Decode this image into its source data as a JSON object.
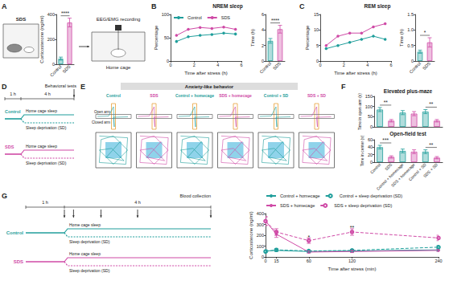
{
  "chart_data": [
    {
      "panel": "A",
      "type": "bar",
      "y_label": "Corticosterone (ng/ml)",
      "categories": [
        "Control",
        "SDS"
      ],
      "values": [
        45,
        335
      ],
      "errors": [
        12,
        35
      ],
      "colors": [
        "#1f9e9b",
        "#cf4aa6"
      ],
      "ylim": [
        0,
        400
      ],
      "yticks": [
        0,
        200,
        400
      ],
      "grid": false,
      "annotations": [
        {
          "text": "****",
          "categories": [
            "Control",
            "SDS"
          ]
        }
      ]
    },
    {
      "panel": "B",
      "type": "line",
      "title": "NREM sleep",
      "x_label": "Time after stress (h)",
      "y_label": "Percentage",
      "x": [
        0.5,
        1.5,
        2.5,
        3.5,
        4.5,
        5.5
      ],
      "series": [
        {
          "name": "Control",
          "color": "#1f9e9b",
          "values": [
            42,
            52,
            55,
            57,
            60,
            58
          ]
        },
        {
          "name": "SDS",
          "color": "#cf4aa6",
          "values": [
            55,
            68,
            72,
            70,
            73,
            68
          ]
        }
      ],
      "xlim": [
        0,
        6
      ],
      "xticks": [
        0,
        2,
        4,
        6
      ],
      "ylim": [
        0,
        100
      ],
      "yticks": [
        0,
        50,
        100
      ],
      "legend": "upper left",
      "grid": false
    },
    {
      "type": "bar",
      "y_label": "Time (h)",
      "categories": [
        "Control",
        "SDS"
      ],
      "values": [
        2.6,
        4.1
      ],
      "errors": [
        0.3,
        0.5
      ],
      "colors": [
        "#1f9e9b",
        "#cf4aa6"
      ],
      "ylim": [
        0,
        6
      ],
      "yticks": [
        0,
        2,
        4,
        6
      ],
      "grid": false,
      "annotations": [
        {
          "text": "****",
          "categories": [
            "Control",
            "SDS"
          ]
        }
      ]
    },
    {
      "panel": "C",
      "type": "line",
      "title": "REM sleep",
      "x_label": "Time after stress (h)",
      "y_label": "Percentage",
      "x": [
        0.5,
        1.5,
        2.5,
        3.5,
        4.5,
        5.5
      ],
      "series": [
        {
          "name": "Control",
          "color": "#1f9e9b",
          "values": [
            4,
            5,
            6,
            7,
            8,
            7
          ]
        },
        {
          "name": "SDS",
          "color": "#cf4aa6",
          "values": [
            5,
            8,
            9,
            9,
            11,
            12
          ]
        }
      ],
      "xlim": [
        0,
        6
      ],
      "xticks": [
        0,
        2,
        4,
        6
      ],
      "ylim": [
        0,
        15
      ],
      "yticks": [
        0,
        5,
        10,
        15
      ],
      "grid": false
    },
    {
      "type": "bar",
      "y_label": "Time (h)",
      "categories": [
        "Control",
        "SDS"
      ],
      "values": [
        0.3,
        0.6
      ],
      "errors": [
        0.05,
        0.15
      ],
      "colors": [
        "#1f9e9b",
        "#cf4aa6"
      ],
      "ylim": [
        0,
        1.5
      ],
      "yticks": [
        0,
        0.5,
        {
          "value": 1,
          "label": "1.0"
        },
        1.5
      ],
      "grid": false,
      "annotations": [
        {
          "text": "*",
          "categories": [
            "Control",
            "SDS"
          ]
        }
      ]
    },
    {
      "panel": "F",
      "type": "bar",
      "title": "Elevated plus-maze",
      "y_label": "Time in open arm (s)",
      "categories": [
        "Control",
        "SDS",
        "Control + homecage",
        "SDS + homecage",
        "Control + SD",
        "SDS + SD"
      ],
      "values": [
        85,
        30,
        70,
        65,
        75,
        30
      ],
      "errors": [
        10,
        6,
        10,
        10,
        10,
        6
      ],
      "colors": [
        "#1f9e9b",
        "#cf4aa6",
        "#1f9e9b",
        "#cf4aa6",
        "#1f9e9b",
        "#cf4aa6"
      ],
      "ylim": [
        0,
        150
      ],
      "yticks": [
        0,
        50,
        100,
        150
      ],
      "tick_labels": "y",
      "grid": false,
      "annotations": [
        {
          "text": "**",
          "categories": [
            "Control",
            "SDS"
          ]
        },
        {
          "text": "**",
          "categories": [
            "Control + SD",
            "SDS + SD"
          ]
        }
      ]
    },
    {
      "type": "bar",
      "title": "Open-field test",
      "y_label": "Time in center (s)",
      "categories": [
        "Control",
        "SDS",
        "Control + homecage",
        "SDS + homecage",
        "Control + SD",
        "SDS + SD"
      ],
      "values": [
        40,
        14,
        30,
        28,
        28,
        12
      ],
      "errors": [
        5,
        3,
        5,
        5,
        5,
        3
      ],
      "colors": [
        "#1f9e9b",
        "#cf4aa6",
        "#1f9e9b",
        "#cf4aa6",
        "#1f9e9b",
        "#cf4aa6"
      ],
      "ylim": [
        0,
        60
      ],
      "yticks": [
        0,
        20,
        40,
        60
      ],
      "grid": false,
      "annotations": [
        {
          "text": "***",
          "categories": [
            "Control",
            "SDS"
          ]
        },
        {
          "text": "**",
          "categories": [
            "Control + SD",
            "SDS + SD"
          ]
        }
      ]
    },
    {
      "panel": "G",
      "type": "line",
      "x_label": "Time after stress (min)",
      "y_label": "Corticosterone (ng/ml)",
      "x": [
        0,
        15,
        60,
        120,
        240
      ],
      "series": [
        {
          "name": "Control + homecage",
          "color": "#1f9e9b",
          "marker": "filled",
          "line_style": "solid",
          "values": [
            55,
            60,
            50,
            55,
            65
          ],
          "errors": [
            10,
            10,
            8,
            10,
            10
          ]
        },
        {
          "name": "Control + sleep deprivation (SD)",
          "color": "#1f9e9b",
          "marker": "open",
          "line_style": "dashed",
          "values": [
            50,
            65,
            55,
            60,
            90
          ],
          "errors": [
            10,
            10,
            8,
            10,
            15
          ]
        },
        {
          "name": "SDS + homecage",
          "color": "#cf4aa6",
          "marker": "filled",
          "line_style": "solid",
          "values": [
            330,
            210,
            45,
            50,
            60
          ],
          "errors": [
            40,
            30,
            10,
            10,
            10
          ]
        },
        {
          "name": "SDS + sleep deprivation (SD)",
          "color": "#cf4aa6",
          "marker": "open",
          "line_style": "dashed",
          "values": [
            330,
            230,
            150,
            230,
            175
          ],
          "errors": [
            40,
            30,
            25,
            30,
            25
          ]
        }
      ],
      "xlim": [
        0,
        240
      ],
      "xticks": [
        0,
        15,
        60,
        120,
        240
      ],
      "ylim": [
        0,
        400
      ],
      "yticks": [
        0,
        100,
        200,
        300,
        400
      ],
      "legend": "top",
      "grid": false,
      "annotations": [
        {
          "text": "*",
          "x": 60,
          "y": 185
        },
        {
          "text": "**",
          "x": 120,
          "y": 270
        }
      ]
    }
  ],
  "schematics": {
    "A": {
      "labels": [
        "SDS",
        "EEG/EMG recording",
        "Home cage"
      ]
    },
    "D": {
      "panel": "D",
      "header": "Behavioral tests",
      "durations": [
        "1 h",
        "4 h"
      ],
      "groups": [
        {
          "name": "Control",
          "color": "#1f9e9b"
        },
        {
          "name": "SDS",
          "color": "#cf4aa6"
        }
      ],
      "conditions": [
        "Home cage sleep",
        "Sleep deprivation (SD)"
      ]
    },
    "E": {
      "panel": "E",
      "title": "Anxiety-like behavior",
      "columns": [
        {
          "name": "Control",
          "color": "#1f9e9b"
        },
        {
          "name": "SDS",
          "color": "#cf4aa6"
        },
        {
          "name": "Control + homecage",
          "color": "#1f9e9b"
        },
        {
          "name": "SDS + homecage",
          "color": "#cf4aa6"
        },
        {
          "name": "Control + SD",
          "color": "#1f9e9b"
        },
        {
          "name": "SDS + SD",
          "color": "#cf4aa6"
        }
      ],
      "arms": [
        "Open arm",
        "Closed arm"
      ]
    },
    "G": {
      "durations": [
        "1 h",
        "4 h"
      ],
      "groups": [
        {
          "name": "Control",
          "color": "#1f9e9b"
        },
        {
          "name": "SDS",
          "color": "#cf4aa6"
        }
      ],
      "conditions": [
        "Home cage sleep",
        "Sleep deprivation (SD)"
      ],
      "event": "Blood collection"
    }
  }
}
